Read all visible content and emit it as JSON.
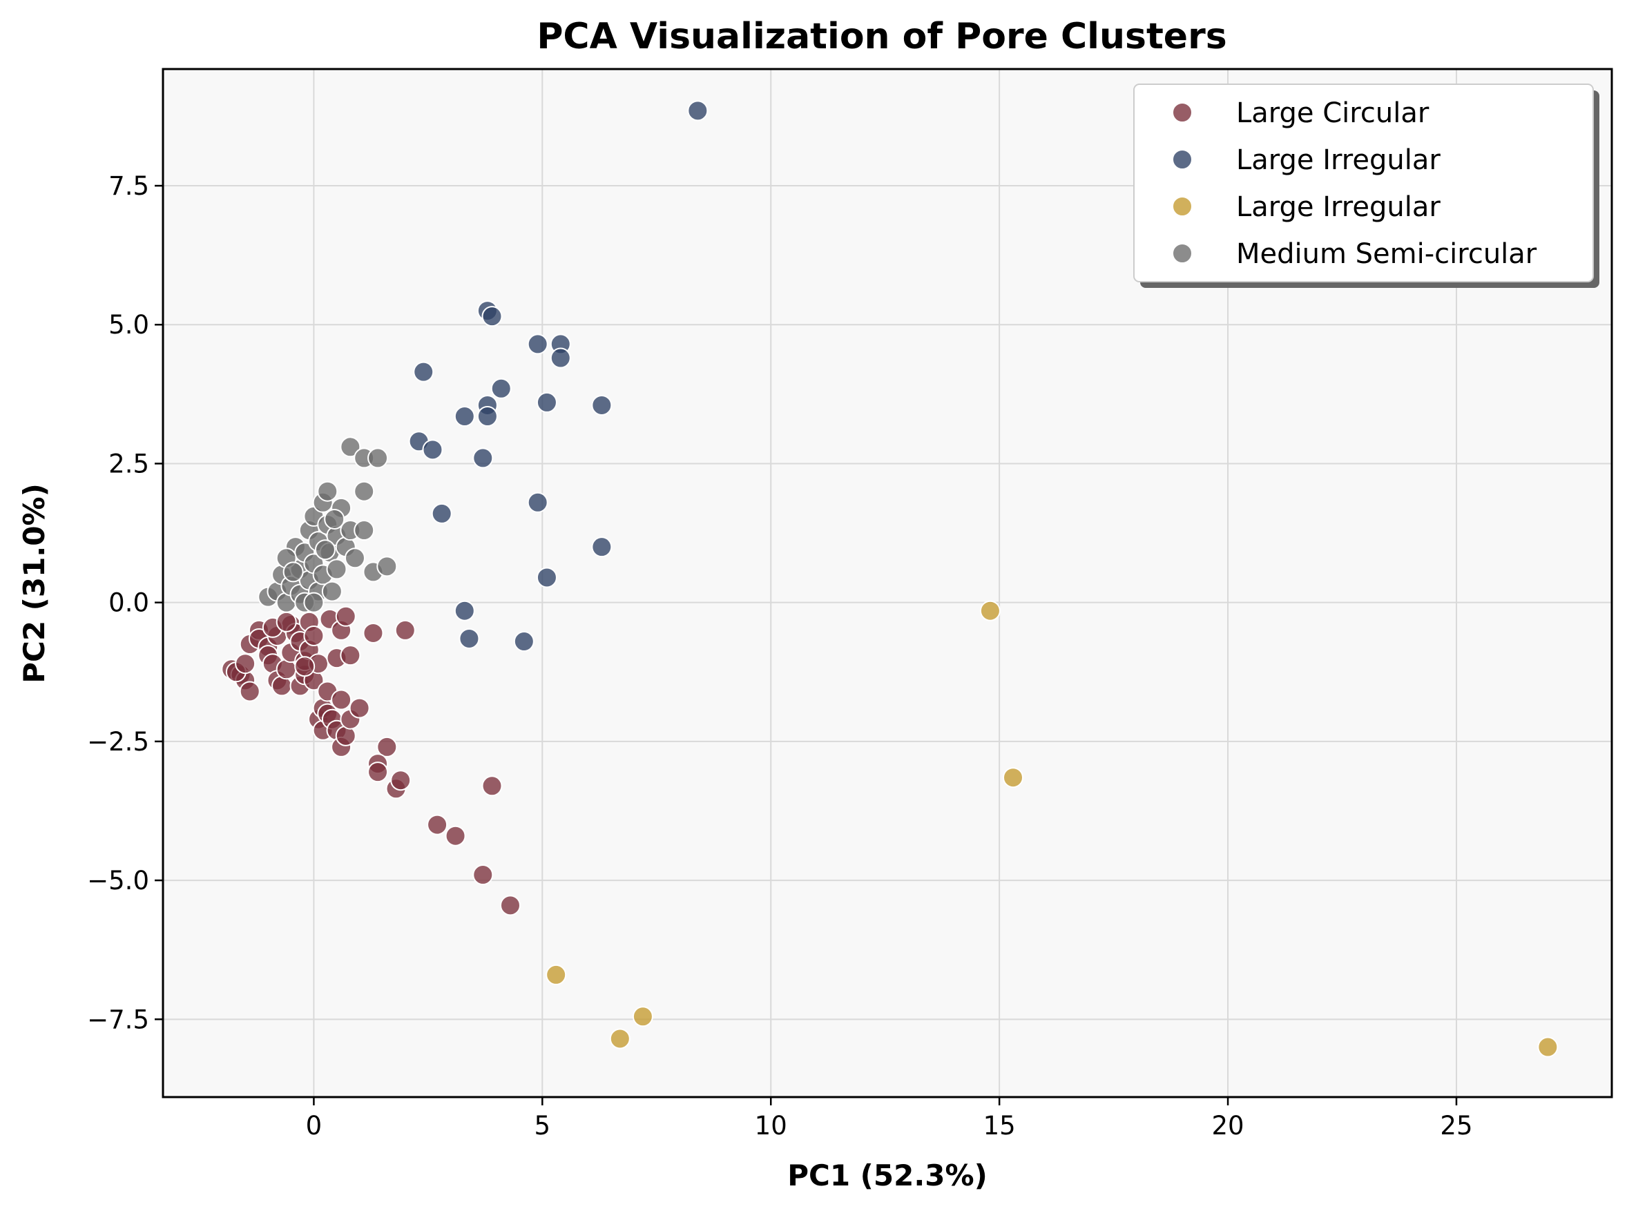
{
  "chart_data": {
    "type": "scatter",
    "title": "PCA Visualization of Pore Clusters",
    "xlabel": "PC1 (52.3%)",
    "ylabel": "PC2 (31.0%)",
    "xlim": [
      -3.3,
      28.4
    ],
    "ylim": [
      -8.9,
      9.6
    ],
    "xticks": [
      0,
      5,
      10,
      15,
      20,
      25
    ],
    "xtick_labels": [
      "0",
      "5",
      "10",
      "15",
      "20",
      "25"
    ],
    "yticks": [
      -7.5,
      -5.0,
      -2.5,
      0.0,
      2.5,
      5.0,
      7.5
    ],
    "ytick_labels": [
      "−7.5",
      "−5.0",
      "−2.5",
      "0.0",
      "2.5",
      "5.0",
      "7.5"
    ],
    "grid": true,
    "legend_position": "top-right",
    "series": [
      {
        "name": "Large Circular",
        "color": "#7a2f3b",
        "points": [
          [
            -1.8,
            -1.2
          ],
          [
            -1.6,
            -1.3
          ],
          [
            -1.5,
            -1.4
          ],
          [
            -1.4,
            -1.6
          ],
          [
            -1.7,
            -1.25
          ],
          [
            -1.5,
            -1.1
          ],
          [
            -1.4,
            -0.75
          ],
          [
            -1.2,
            -0.5
          ],
          [
            -1.2,
            -0.65
          ],
          [
            -1.0,
            -0.8
          ],
          [
            -1.0,
            -0.95
          ],
          [
            -0.9,
            -1.1
          ],
          [
            -0.8,
            -0.6
          ],
          [
            -0.8,
            -1.4
          ],
          [
            -0.7,
            -1.5
          ],
          [
            -0.6,
            -1.2
          ],
          [
            -0.5,
            -0.9
          ],
          [
            -0.5,
            -0.4
          ],
          [
            -0.4,
            -0.55
          ],
          [
            -0.3,
            -0.7
          ],
          [
            -0.3,
            -1.5
          ],
          [
            -0.2,
            -1.3
          ],
          [
            -0.2,
            -1.05
          ],
          [
            -0.1,
            -0.85
          ],
          [
            -0.1,
            -0.35
          ],
          [
            0.0,
            -0.6
          ],
          [
            0.0,
            -1.4
          ],
          [
            0.1,
            -1.1
          ],
          [
            0.1,
            -2.1
          ],
          [
            0.2,
            -1.9
          ],
          [
            0.2,
            -2.3
          ],
          [
            0.3,
            -2.0
          ],
          [
            0.3,
            -1.6
          ],
          [
            0.35,
            -0.3
          ],
          [
            0.4,
            -2.1
          ],
          [
            0.5,
            -1.0
          ],
          [
            0.5,
            -2.3
          ],
          [
            0.6,
            -2.6
          ],
          [
            0.6,
            -1.75
          ],
          [
            0.6,
            -0.5
          ],
          [
            0.7,
            -0.25
          ],
          [
            0.7,
            -2.4
          ],
          [
            0.8,
            -2.1
          ],
          [
            0.8,
            -0.95
          ],
          [
            1.0,
            -1.9
          ],
          [
            1.3,
            -0.55
          ],
          [
            1.6,
            -2.6
          ],
          [
            1.4,
            -2.9
          ],
          [
            1.4,
            -3.05
          ],
          [
            1.8,
            -3.35
          ],
          [
            1.9,
            -3.2
          ],
          [
            2.0,
            -0.5
          ],
          [
            2.7,
            -4.0
          ],
          [
            3.1,
            -4.2
          ],
          [
            3.7,
            -4.9
          ],
          [
            3.9,
            -3.3
          ],
          [
            4.3,
            -5.45
          ],
          [
            -0.9,
            -0.45
          ],
          [
            -0.6,
            -0.35
          ],
          [
            -0.2,
            -1.15
          ]
        ]
      },
      {
        "name": "Large Irregular",
        "color": "#2e4165",
        "points": [
          [
            8.4,
            8.85
          ],
          [
            3.8,
            5.25
          ],
          [
            3.9,
            5.15
          ],
          [
            4.9,
            4.65
          ],
          [
            5.4,
            4.65
          ],
          [
            5.4,
            4.4
          ],
          [
            2.4,
            4.15
          ],
          [
            4.1,
            3.85
          ],
          [
            3.8,
            3.55
          ],
          [
            5.1,
            3.6
          ],
          [
            6.3,
            3.55
          ],
          [
            3.3,
            3.35
          ],
          [
            3.8,
            3.35
          ],
          [
            2.3,
            2.9
          ],
          [
            2.6,
            2.75
          ],
          [
            3.7,
            2.6
          ],
          [
            4.9,
            1.8
          ],
          [
            2.8,
            1.6
          ],
          [
            6.3,
            1.0
          ],
          [
            5.1,
            0.45
          ],
          [
            3.3,
            -0.15
          ],
          [
            3.4,
            -0.65
          ],
          [
            4.6,
            -0.7
          ]
        ]
      },
      {
        "name": "Large Irregular",
        "color": "#c49a2e",
        "points": [
          [
            14.8,
            -0.15
          ],
          [
            15.3,
            -3.15
          ],
          [
            5.3,
            -6.7
          ],
          [
            7.2,
            -7.45
          ],
          [
            6.7,
            -7.85
          ],
          [
            27.0,
            -8.0
          ]
        ]
      },
      {
        "name": "Medium Semi-circular",
        "color": "#6b6b6b",
        "points": [
          [
            -1.0,
            0.1
          ],
          [
            -0.8,
            0.2
          ],
          [
            -0.7,
            0.5
          ],
          [
            -0.6,
            0.0
          ],
          [
            -0.5,
            0.3
          ],
          [
            -0.4,
            1.0
          ],
          [
            -0.3,
            0.6
          ],
          [
            -0.3,
            0.15
          ],
          [
            -0.2,
            0.9
          ],
          [
            -0.1,
            1.3
          ],
          [
            -0.1,
            0.4
          ],
          [
            0.0,
            1.55
          ],
          [
            0.0,
            0.7
          ],
          [
            0.1,
            1.1
          ],
          [
            0.1,
            0.2
          ],
          [
            0.2,
            1.8
          ],
          [
            0.2,
            0.5
          ],
          [
            0.3,
            2.0
          ],
          [
            0.3,
            1.4
          ],
          [
            0.35,
            0.9
          ],
          [
            0.4,
            0.2
          ],
          [
            0.5,
            1.2
          ],
          [
            0.5,
            0.6
          ],
          [
            0.6,
            1.7
          ],
          [
            0.7,
            1.0
          ],
          [
            0.8,
            2.8
          ],
          [
            0.8,
            1.3
          ],
          [
            0.9,
            0.8
          ],
          [
            1.1,
            1.3
          ],
          [
            1.1,
            2.0
          ],
          [
            1.1,
            2.6
          ],
          [
            1.4,
            2.6
          ],
          [
            1.3,
            0.55
          ],
          [
            1.6,
            0.65
          ],
          [
            -0.2,
            0.0
          ],
          [
            -0.6,
            0.8
          ],
          [
            0.0,
            0.0
          ],
          [
            0.25,
            0.95
          ],
          [
            0.45,
            1.5
          ],
          [
            -0.45,
            0.55
          ]
        ]
      }
    ]
  }
}
